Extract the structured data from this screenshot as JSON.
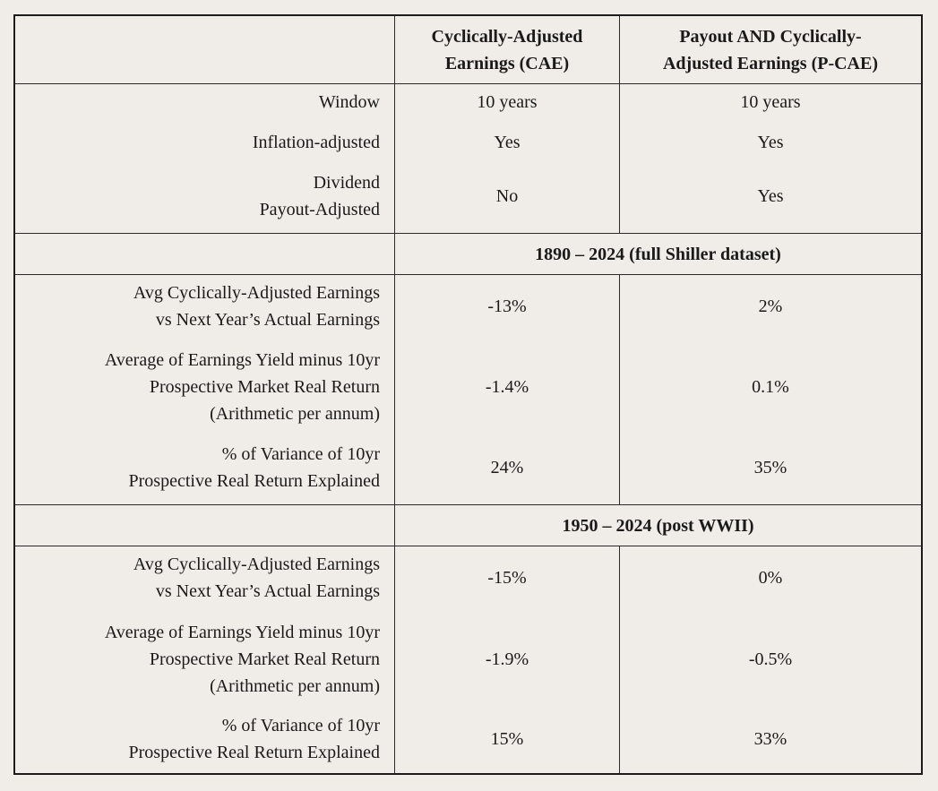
{
  "header": {
    "col_cae": "Cyclically-Adjusted Earnings (CAE)",
    "col_cae_line1": "Cyclically-Adjusted",
    "col_cae_line2": "Earnings (CAE)",
    "col_pcae_line1": "Payout AND Cyclically-",
    "col_pcae_line2": "Adjusted Earnings (P-CAE)"
  },
  "method_rows": [
    {
      "label": "Window",
      "cae": "10 years",
      "pcae": "10 years"
    },
    {
      "label": "Inflation-adjusted",
      "cae": "Yes",
      "pcae": "Yes"
    },
    {
      "label_line1": "Dividend",
      "label_line2": "Payout-Adjusted",
      "cae": "No",
      "pcae": "Yes"
    }
  ],
  "sections": [
    {
      "title": "1890 – 2024 (full Shiller dataset)",
      "rows": [
        {
          "label_line1": "Avg Cyclically-Adjusted Earnings",
          "label_line2": "vs Next Year’s Actual Earnings",
          "cae": "-13%",
          "pcae": "2%"
        },
        {
          "label_line1": "Average of Earnings Yield minus 10yr",
          "label_line2": "Prospective Market Real Return",
          "label_line3": "(Arithmetic per annum)",
          "cae": "-1.4%",
          "pcae": "0.1%"
        },
        {
          "label_line1": "% of Variance of 10yr",
          "label_line2": "Prospective Real Return Explained",
          "cae": "24%",
          "pcae": "35%"
        }
      ]
    },
    {
      "title": "1950 – 2024 (post WWII)",
      "rows": [
        {
          "label_line1": "Avg Cyclically-Adjusted Earnings",
          "label_line2": "vs Next Year’s Actual Earnings",
          "cae": "-15%",
          "pcae": "0%"
        },
        {
          "label_line1": "Average of Earnings Yield minus 10yr",
          "label_line2": "Prospective Market Real Return",
          "label_line3": "(Arithmetic per annum)",
          "cae": "-1.9%",
          "pcae": "-0.5%"
        },
        {
          "label_line1": "% of Variance of 10yr",
          "label_line2": "Prospective Real Return Explained",
          "cae": "15%",
          "pcae": "33%"
        }
      ]
    }
  ]
}
